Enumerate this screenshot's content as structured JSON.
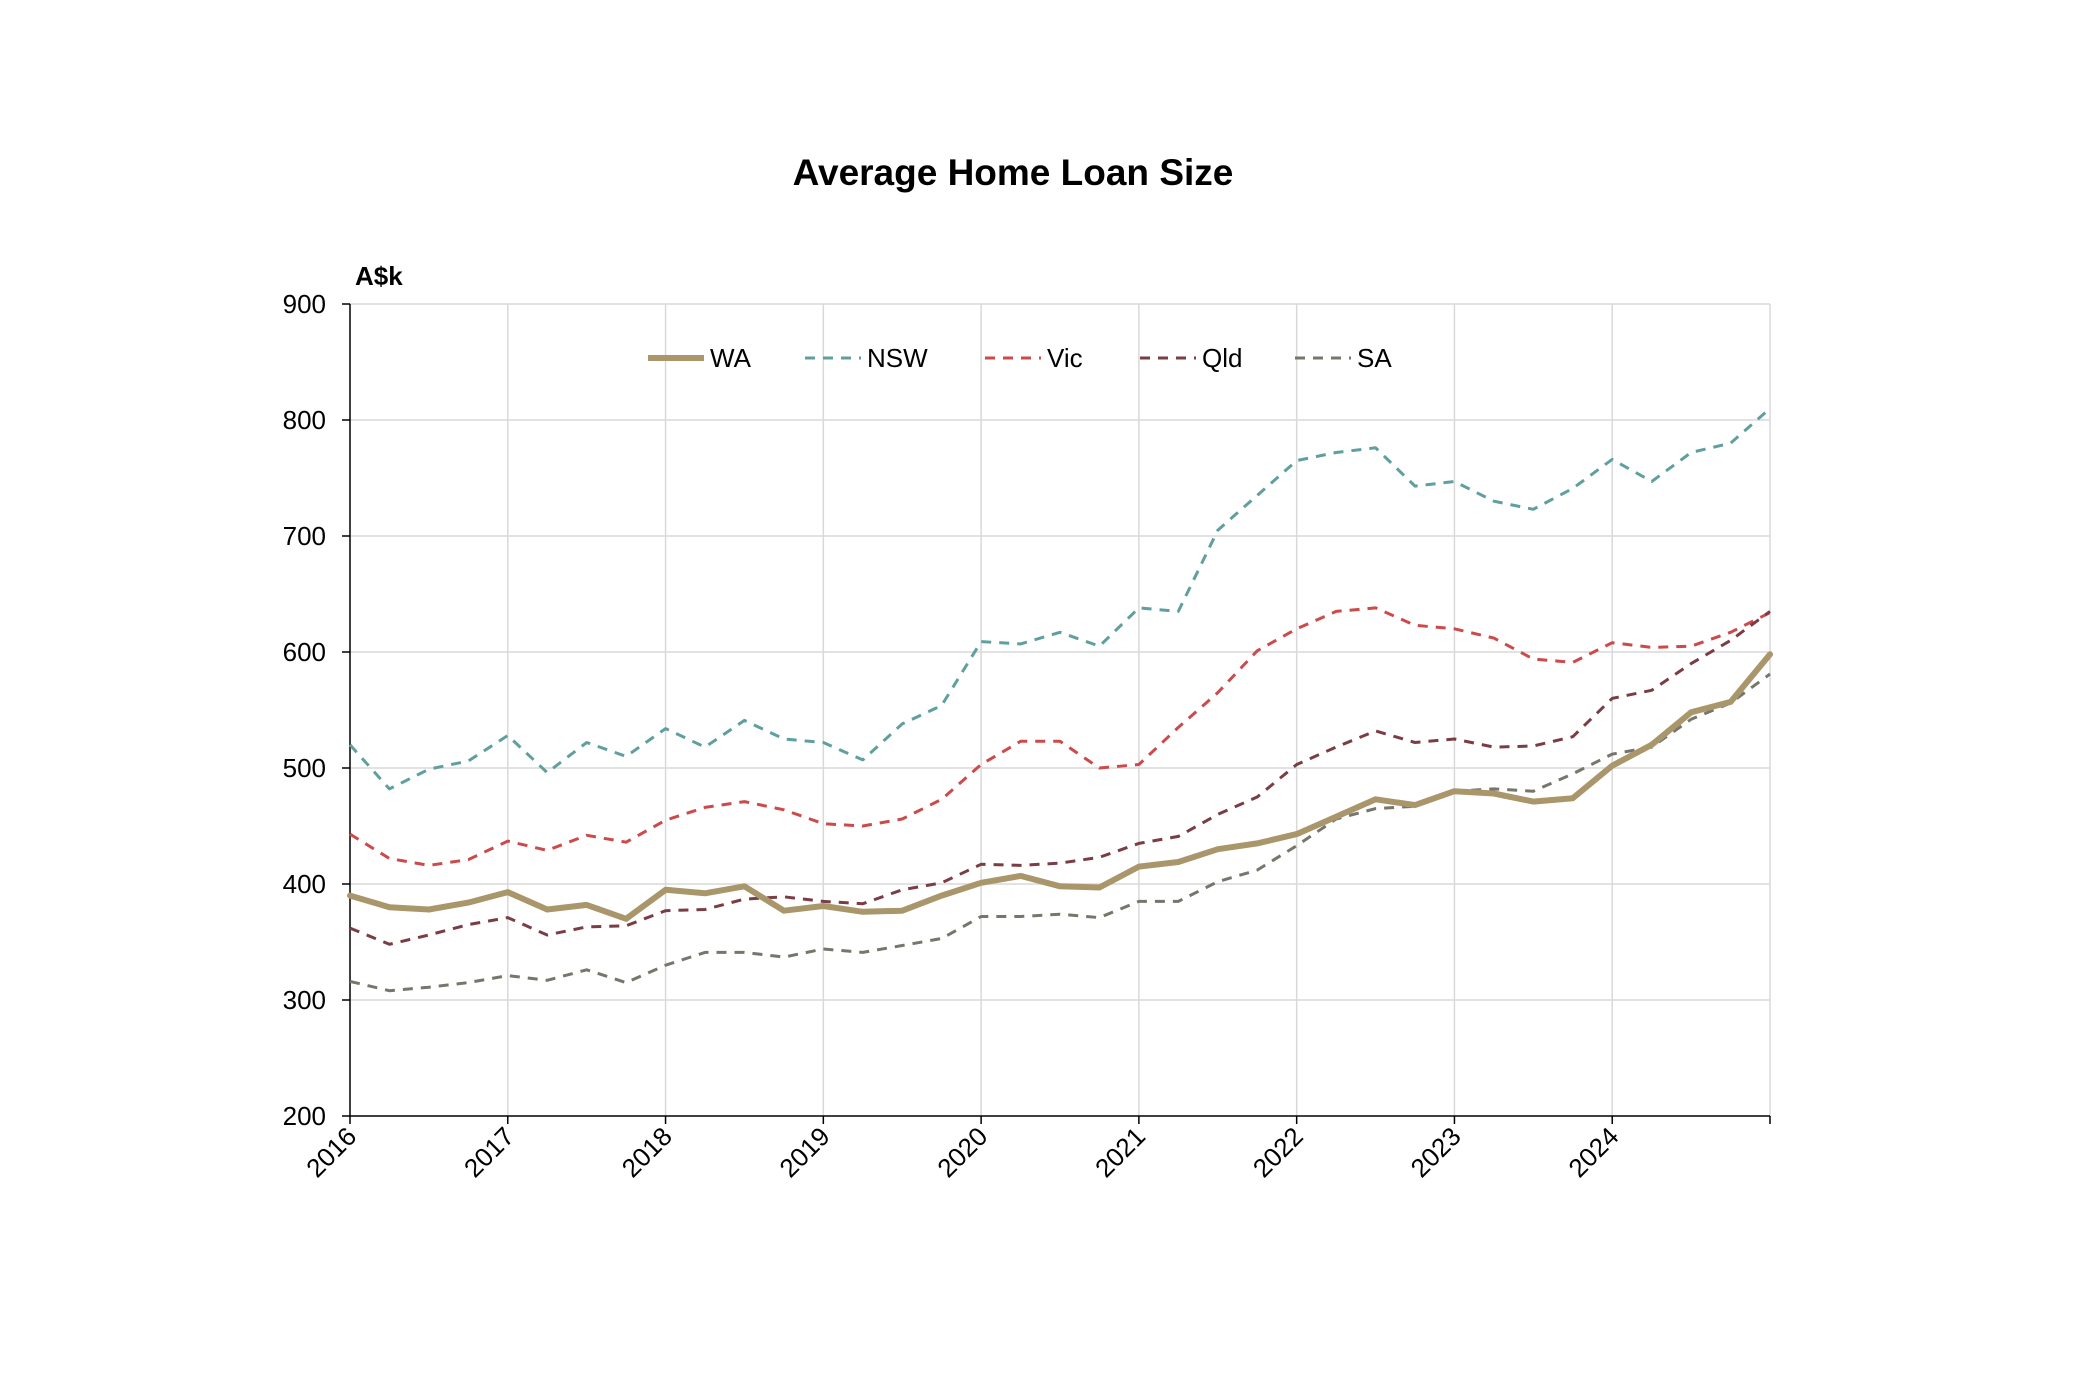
{
  "chart_data": {
    "type": "line",
    "title": "Average Home Loan Size",
    "unit_label": "A$k",
    "xlabel": "",
    "ylabel": "",
    "ylim": [
      200,
      900
    ],
    "yticks": [
      200,
      300,
      400,
      500,
      600,
      700,
      800,
      900
    ],
    "xlim": [
      2016,
      2025
    ],
    "xticks": [
      "2016",
      "2017",
      "2018",
      "2019",
      "2020",
      "2021",
      "2022",
      "2023",
      "2024"
    ],
    "grid": true,
    "legend_position": "top-center",
    "x": [
      2016.0,
      2016.25,
      2016.5,
      2016.75,
      2017.0,
      2017.25,
      2017.5,
      2017.75,
      2018.0,
      2018.25,
      2018.5,
      2018.75,
      2019.0,
      2019.25,
      2019.5,
      2019.75,
      2020.0,
      2020.25,
      2020.5,
      2020.75,
      2021.0,
      2021.25,
      2021.5,
      2021.75,
      2022.0,
      2022.25,
      2022.5,
      2022.75,
      2023.0,
      2023.25,
      2023.5,
      2023.75,
      2024.0,
      2024.25,
      2024.5,
      2024.75,
      2025.0
    ],
    "series": [
      {
        "name": "WA",
        "color": "#a9976b",
        "style": "solid",
        "values": [
          390,
          380,
          378,
          384,
          393,
          378,
          382,
          370,
          395,
          392,
          398,
          377,
          381,
          376,
          377,
          390,
          401,
          407,
          398,
          397,
          415,
          419,
          430,
          435,
          443,
          458,
          473,
          468,
          480,
          478,
          471,
          474,
          502,
          520,
          548,
          557,
          598
        ]
      },
      {
        "name": "NSW",
        "color": "#5fa09e",
        "style": "dashed",
        "values": [
          520,
          482,
          499,
          506,
          528,
          496,
          522,
          510,
          534,
          518,
          541,
          525,
          522,
          507,
          538,
          554,
          609,
          607,
          617,
          605,
          638,
          635,
          705,
          735,
          765,
          772,
          776,
          743,
          747,
          730,
          723,
          741,
          766,
          747,
          772,
          780,
          810
        ]
      },
      {
        "name": "Vic",
        "color": "#cc4a4a",
        "style": "dashed",
        "values": [
          443,
          422,
          416,
          421,
          437,
          429,
          442,
          436,
          455,
          466,
          471,
          464,
          452,
          450,
          456,
          473,
          503,
          523,
          523,
          500,
          503,
          535,
          565,
          601,
          620,
          635,
          638,
          623,
          620,
          612,
          594,
          591,
          608,
          604,
          605,
          617,
          634
        ]
      },
      {
        "name": "Qld",
        "color": "#7a3d45",
        "style": "dashed",
        "values": [
          362,
          348,
          356,
          365,
          371,
          356,
          363,
          364,
          377,
          378,
          387,
          389,
          385,
          383,
          395,
          401,
          417,
          416,
          418,
          423,
          435,
          441,
          460,
          475,
          503,
          518,
          532,
          522,
          525,
          518,
          519,
          527,
          560,
          567,
          590,
          610,
          635
        ]
      },
      {
        "name": "SA",
        "color": "#76766c",
        "style": "dashed",
        "values": [
          316,
          308,
          311,
          315,
          321,
          317,
          326,
          315,
          330,
          341,
          341,
          337,
          344,
          341,
          347,
          353,
          372,
          372,
          374,
          371,
          385,
          385,
          402,
          412,
          433,
          456,
          465,
          467,
          480,
          482,
          480,
          495,
          512,
          518,
          542,
          556,
          581
        ]
      }
    ]
  }
}
